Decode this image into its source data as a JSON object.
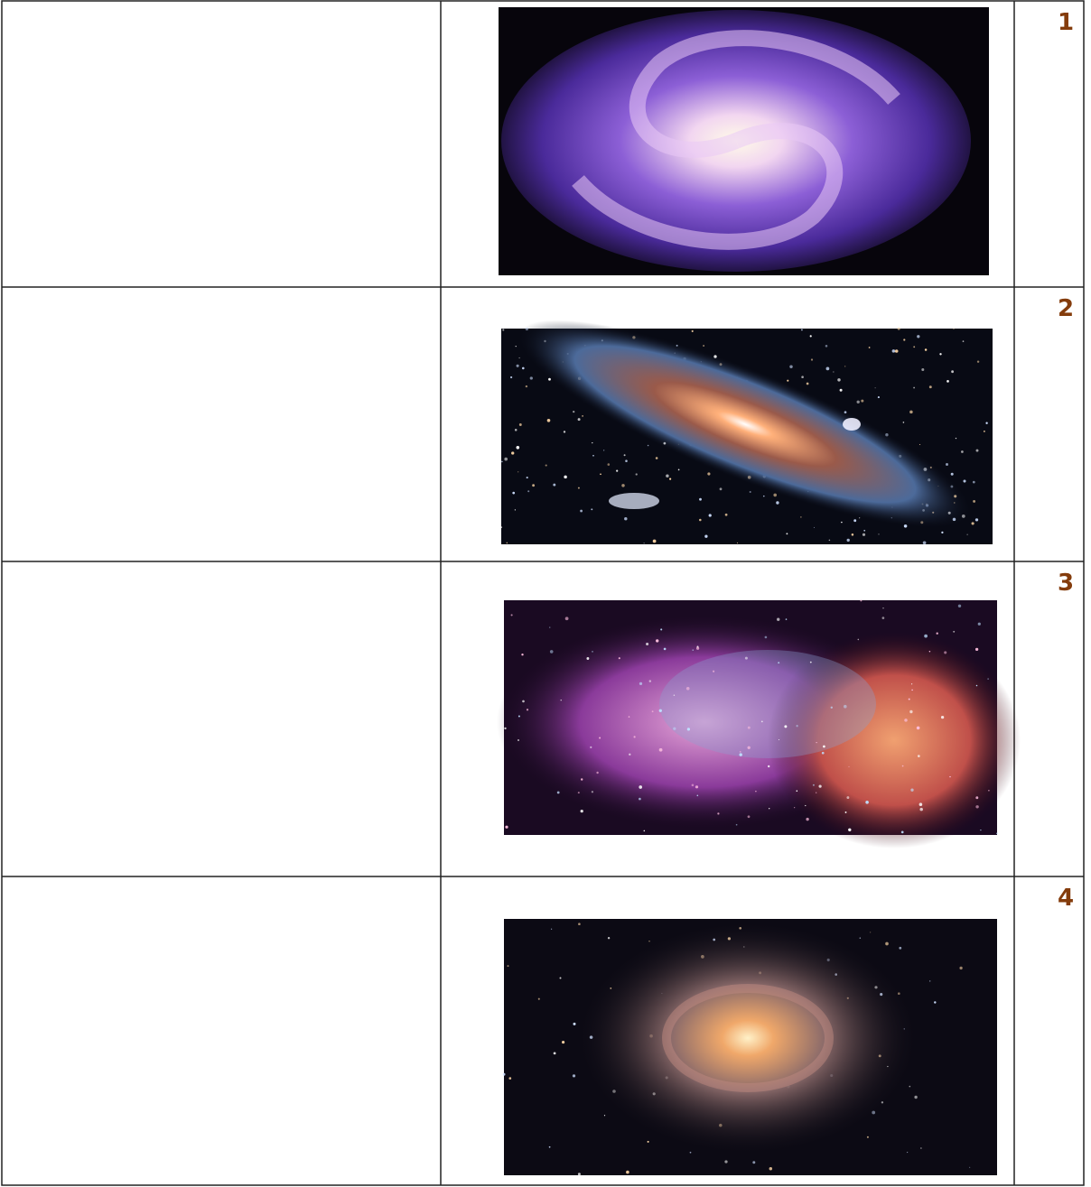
{
  "table": {
    "row_numbers": [
      1,
      2,
      3,
      4
    ]
  }
}
